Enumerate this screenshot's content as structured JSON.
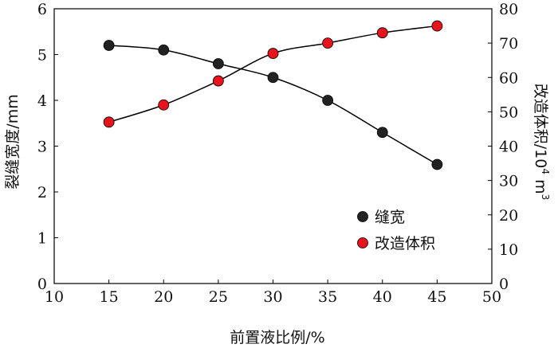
{
  "chart_data": {
    "type": "line",
    "xlabel": "前置液比例/%",
    "ylabel_left": "裂缝宽度/mm",
    "ylabel_right_main": "改造体积/10",
    "ylabel_right_sup": "4",
    "ylabel_right_unit": "m",
    "ylabel_right_unit_sup": "3",
    "xlim": [
      10,
      50
    ],
    "ylim_left": [
      0,
      6
    ],
    "ylim_right": [
      0,
      80
    ],
    "xticks": [
      "10",
      "15",
      "20",
      "25",
      "30",
      "35",
      "40",
      "45",
      "50"
    ],
    "yticks_left": [
      "0",
      "1",
      "2",
      "3",
      "4",
      "5",
      "6"
    ],
    "yticks_right": [
      "0",
      "10",
      "20",
      "30",
      "40",
      "50",
      "60",
      "70",
      "80"
    ],
    "x": [
      15,
      20,
      25,
      30,
      35,
      40,
      45
    ],
    "series": [
      {
        "name": "缝宽",
        "axis": "left",
        "color": "#222222",
        "values": [
          5.2,
          5.1,
          4.8,
          4.5,
          4.0,
          3.3,
          2.6
        ]
      },
      {
        "name": "改造体积",
        "axis": "right",
        "color": "#e8141b",
        "values": [
          47,
          52,
          59,
          67,
          70,
          73,
          75
        ]
      }
    ],
    "legend_position": "lower-right",
    "grid": false
  }
}
